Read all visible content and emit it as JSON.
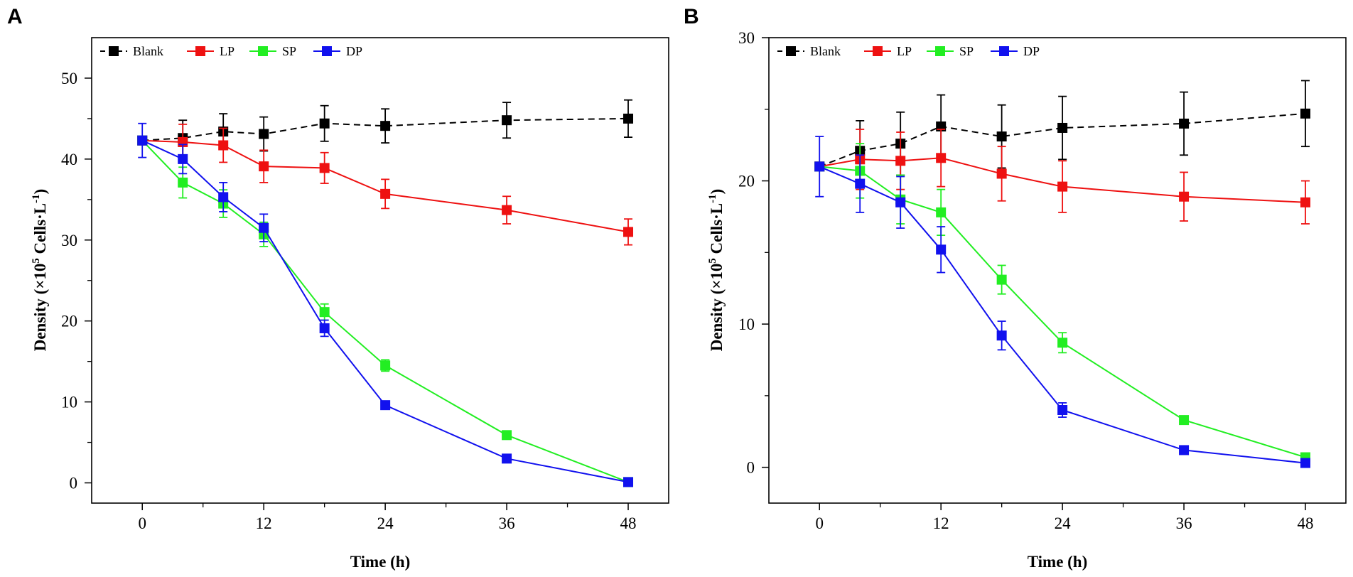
{
  "chart_data": [
    {
      "panel": "A",
      "type": "line",
      "xlabel": "Time (h)",
      "ylabel": {
        "prefix": "Density (×10",
        "sup1": "5",
        "mid": " Cells·L",
        "sup2": "-1",
        "suffix": ")"
      },
      "xlim": [
        -5,
        52
      ],
      "ylim": [
        -2.5,
        55
      ],
      "xticks": [
        0,
        12,
        24,
        36,
        48
      ],
      "yticks": [
        0,
        10,
        20,
        30,
        40,
        50
      ],
      "legend_position": "top-left",
      "series": [
        {
          "name": "Blank",
          "color": "#000000",
          "dashed": true,
          "x": [
            0,
            4,
            8,
            12,
            18,
            24,
            36,
            48
          ],
          "y": [
            42.3,
            42.6,
            43.4,
            43.1,
            44.4,
            44.1,
            44.8,
            45.0
          ],
          "err": [
            0,
            2.2,
            2.2,
            2.1,
            2.2,
            2.1,
            2.2,
            2.3
          ]
        },
        {
          "name": "LP",
          "color": "#ee1111",
          "dashed": false,
          "x": [
            0,
            4,
            8,
            12,
            18,
            24,
            36,
            48
          ],
          "y": [
            42.3,
            42.1,
            41.7,
            39.1,
            38.9,
            35.7,
            33.7,
            31.0
          ],
          "err": [
            0,
            2.2,
            2.1,
            2.0,
            1.9,
            1.8,
            1.7,
            1.6
          ]
        },
        {
          "name": "SP",
          "color": "#22ee22",
          "dashed": false,
          "x": [
            0,
            4,
            8,
            12,
            18,
            24,
            36,
            48
          ],
          "y": [
            42.3,
            37.1,
            34.5,
            30.7,
            21.1,
            14.5,
            5.9,
            0.1
          ],
          "err": [
            0,
            1.9,
            1.7,
            1.5,
            1.0,
            0.7,
            0.3,
            0.1
          ]
        },
        {
          "name": "DP",
          "color": "#1111ee",
          "dashed": false,
          "x": [
            0,
            4,
            8,
            12,
            18,
            24,
            36,
            48
          ],
          "y": [
            42.3,
            40.0,
            35.3,
            31.5,
            19.1,
            9.6,
            3.0,
            0.1
          ],
          "err": [
            2.1,
            1.8,
            1.8,
            1.7,
            1.0,
            0.5,
            0.3,
            0.1
          ]
        }
      ]
    },
    {
      "panel": "B",
      "type": "line",
      "xlabel": "Time (h)",
      "ylabel": {
        "prefix": "Density (×10",
        "sup1": "5",
        "mid": " Cells·L",
        "sup2": "-1",
        "suffix": ")"
      },
      "xlim": [
        -5,
        52
      ],
      "ylim": [
        -2.5,
        30
      ],
      "xticks": [
        0,
        12,
        24,
        36,
        48
      ],
      "yticks": [
        0,
        10,
        20,
        30
      ],
      "legend_position": "top-left",
      "series": [
        {
          "name": "Blank",
          "color": "#000000",
          "dashed": true,
          "x": [
            0,
            4,
            8,
            12,
            18,
            24,
            36,
            48
          ],
          "y": [
            21.0,
            22.1,
            22.6,
            23.8,
            23.1,
            23.7,
            24.0,
            24.7
          ],
          "err": [
            0,
            2.1,
            2.2,
            2.2,
            2.2,
            2.2,
            2.2,
            2.3
          ]
        },
        {
          "name": "LP",
          "color": "#ee1111",
          "dashed": false,
          "x": [
            0,
            4,
            8,
            12,
            18,
            24,
            36,
            48
          ],
          "y": [
            21.0,
            21.5,
            21.4,
            21.6,
            20.5,
            19.6,
            18.9,
            18.5
          ],
          "err": [
            0,
            2.1,
            2.0,
            2.0,
            1.9,
            1.8,
            1.7,
            1.5
          ]
        },
        {
          "name": "SP",
          "color": "#22ee22",
          "dashed": false,
          "x": [
            0,
            4,
            8,
            12,
            18,
            24,
            36,
            48
          ],
          "y": [
            21.0,
            20.7,
            18.7,
            17.8,
            13.1,
            8.7,
            3.3,
            0.7
          ],
          "err": [
            0,
            1.9,
            1.7,
            1.6,
            1.0,
            0.7,
            0.2,
            0.1
          ]
        },
        {
          "name": "DP",
          "color": "#1111ee",
          "dashed": false,
          "x": [
            0,
            4,
            8,
            12,
            18,
            24,
            36,
            48
          ],
          "y": [
            21.0,
            19.8,
            18.5,
            15.2,
            9.2,
            4.0,
            1.2,
            0.3
          ],
          "err": [
            2.1,
            2.0,
            1.8,
            1.6,
            1.0,
            0.5,
            0.2,
            0.1
          ]
        }
      ]
    }
  ]
}
